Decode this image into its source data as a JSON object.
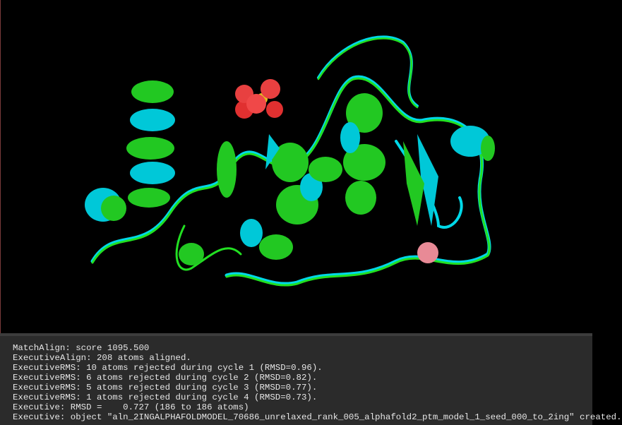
{
  "console": {
    "lines": [
      "MatchAlign: score 1095.500",
      "ExecutiveAlign: 208 atoms aligned.",
      "ExecutiveRMS: 10 atoms rejected during cycle 1 (RMSD=0.96).",
      "ExecutiveRMS: 6 atoms rejected during cycle 2 (RMSD=0.82).",
      "ExecutiveRMS: 5 atoms rejected during cycle 3 (RMSD=0.77).",
      "ExecutiveRMS: 1 atoms rejected during cycle 4 (RMSD=0.73).",
      "Executive: RMSD =    0.727 (186 to 186 atoms)",
      "Executive: object \"aln_2INGALPHAFOLDMODEL_70686_unrelaxed_rank_005_alphafold2_ptm_model_1_seed_000_to_2ing\" created."
    ]
  }
}
